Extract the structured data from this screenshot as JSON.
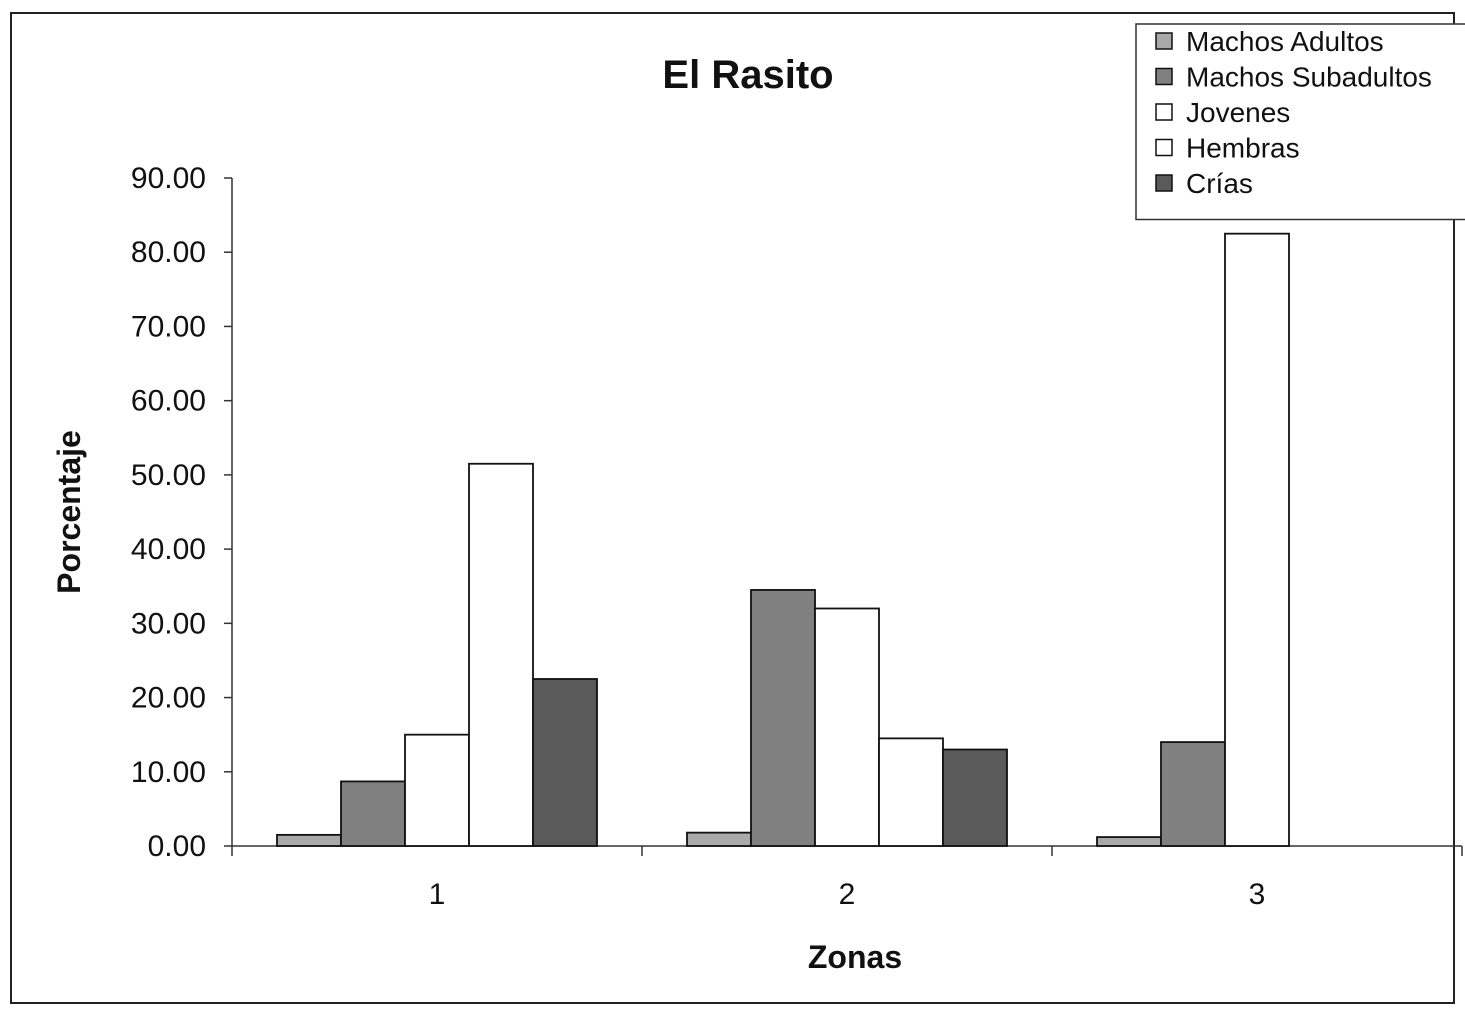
{
  "chart_data": {
    "type": "bar",
    "title": "El Rasito",
    "xlabel": "Zonas",
    "ylabel": "Porcentaje",
    "categories": [
      "1",
      "2",
      "3"
    ],
    "ylim": [
      0,
      90
    ],
    "yticks": [
      "0.00",
      "10.00",
      "20.00",
      "30.00",
      "40.00",
      "50.00",
      "60.00",
      "70.00",
      "80.00",
      "90.00"
    ],
    "ytick_values": [
      0,
      10,
      20,
      30,
      40,
      50,
      60,
      70,
      80,
      90
    ],
    "grid": false,
    "legend_position": "top-right",
    "series": [
      {
        "name": "Machos Adultos",
        "values": [
          1.5,
          1.8,
          1.2
        ],
        "color": "#a9a9a9"
      },
      {
        "name": "Machos Subadultos",
        "values": [
          8.7,
          34.5,
          14.0
        ],
        "color": "#808080"
      },
      {
        "name": "Jovenes",
        "values": [
          15.0,
          32.0,
          82.5
        ],
        "color": "#ffffff"
      },
      {
        "name": "Hembras",
        "values": [
          51.5,
          14.5,
          0
        ],
        "color": "#ffffff"
      },
      {
        "name": "Crías",
        "values": [
          22.5,
          13.0,
          0
        ],
        "color": "#5a5a5a"
      }
    ]
  }
}
